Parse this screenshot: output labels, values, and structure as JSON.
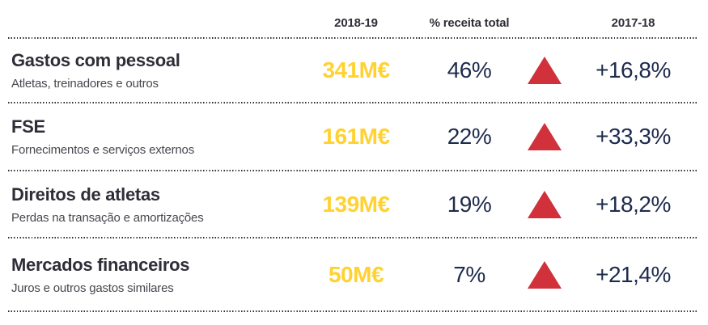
{
  "colors": {
    "value_yellow": "#ffd232",
    "metric_navy": "#1e2b4d",
    "heading_dark": "#2e2e38",
    "subtitle_gray": "#47474f",
    "triangle_red": "#d0313b",
    "background": "#ffffff"
  },
  "header": {
    "col_value": "2018-19",
    "col_pct": "% receita total",
    "col_change": "2017-18"
  },
  "chart_data": {
    "type": "table",
    "columns": [
      "2018-19",
      "% receita total",
      "2017-18"
    ],
    "rows": [
      {
        "label": "Gastos com pessoal",
        "sublabel": "Atletas, treinadores e outros",
        "value_2018_19": "341M€",
        "pct_receita_total": "46%",
        "trend": "up",
        "change_vs_2017_18": "+16,8%"
      },
      {
        "label": "FSE",
        "sublabel": "Fornecimentos e serviços externos",
        "value_2018_19": "161M€",
        "pct_receita_total": "22%",
        "trend": "up",
        "change_vs_2017_18": "+33,3%"
      },
      {
        "label": "Direitos de atletas",
        "sublabel": "Perdas na transação e amortizações",
        "value_2018_19": "139M€",
        "pct_receita_total": "19%",
        "trend": "up",
        "change_vs_2017_18": "+18,2%"
      },
      {
        "label": "Mercados financeiros",
        "sublabel": "Juros e outros gastos similares",
        "value_2018_19": "50M€",
        "pct_receita_total": "7%",
        "trend": "up",
        "change_vs_2017_18": "+21,4%"
      }
    ]
  }
}
